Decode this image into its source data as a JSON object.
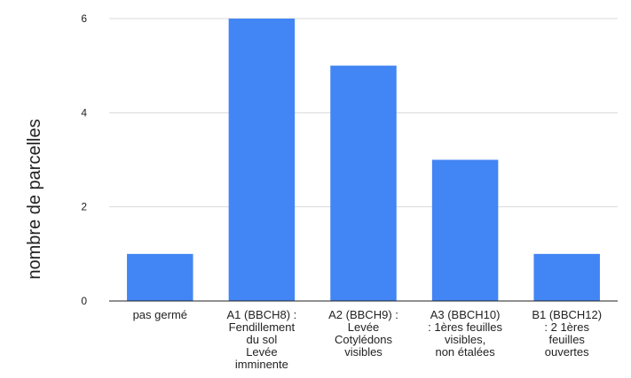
{
  "chart_data": {
    "type": "bar",
    "categories": [
      [
        "pas germé"
      ],
      [
        "A1  (BBCH8) :",
        "Fendillement",
        "du sol",
        "Levée",
        "imminente"
      ],
      [
        "A2  (BBCH9) :",
        "Levée",
        "Cotylédons",
        "visibles"
      ],
      [
        "A3  (BBCH10)",
        ": 1ères feuilles",
        "visibles,",
        "non étalées"
      ],
      [
        "B1 (BBCH12)",
        ": 2 1ères",
        "feuilles",
        "ouvertes"
      ]
    ],
    "values": [
      1,
      6,
      5,
      3,
      1
    ],
    "ylabel": "nombre de parcelles",
    "xlabel": "",
    "ylim": [
      0,
      6
    ],
    "yticks": [
      0,
      2,
      4,
      6
    ],
    "grid": true,
    "bar_color": "#4285f4",
    "grid_color": "#d9d9d9",
    "axis_color": "#222222"
  }
}
